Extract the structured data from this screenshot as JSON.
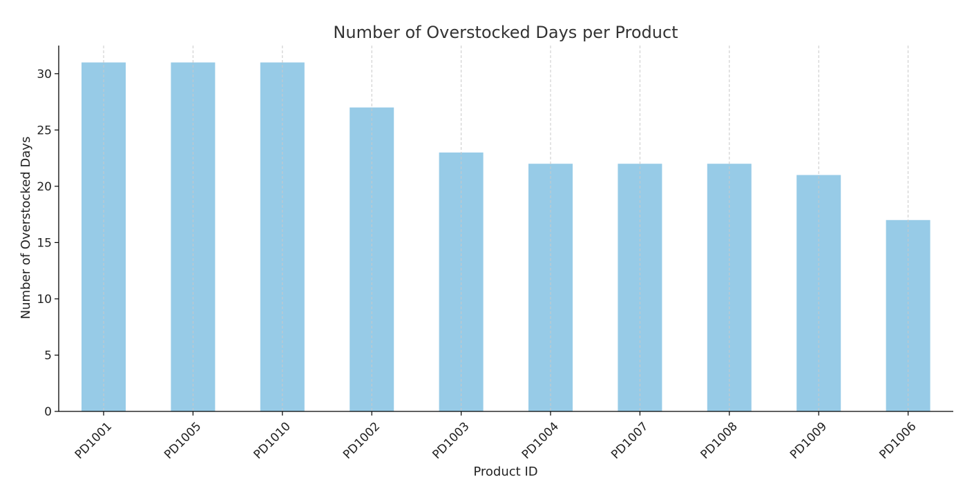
{
  "chart_data": {
    "type": "bar",
    "title": "Number of Overstocked Days per Product",
    "xlabel": "Product ID",
    "ylabel": "Number of Overstocked Days",
    "categories": [
      "PD1001",
      "PD1005",
      "PD1010",
      "PD1002",
      "PD1003",
      "PD1004",
      "PD1007",
      "PD1008",
      "PD1009",
      "PD1006"
    ],
    "values": [
      31,
      31,
      31,
      27,
      23,
      22,
      22,
      22,
      21,
      17
    ],
    "ylim": [
      0,
      32.5
    ],
    "yticks": [
      0,
      5,
      10,
      15,
      20,
      25,
      30
    ],
    "grid": "vertical dashed",
    "colors": {
      "bar": "#97cbe7",
      "grid": "#c8c8c8",
      "axis": "#000000",
      "text": "#222222",
      "title": "#333333"
    }
  }
}
